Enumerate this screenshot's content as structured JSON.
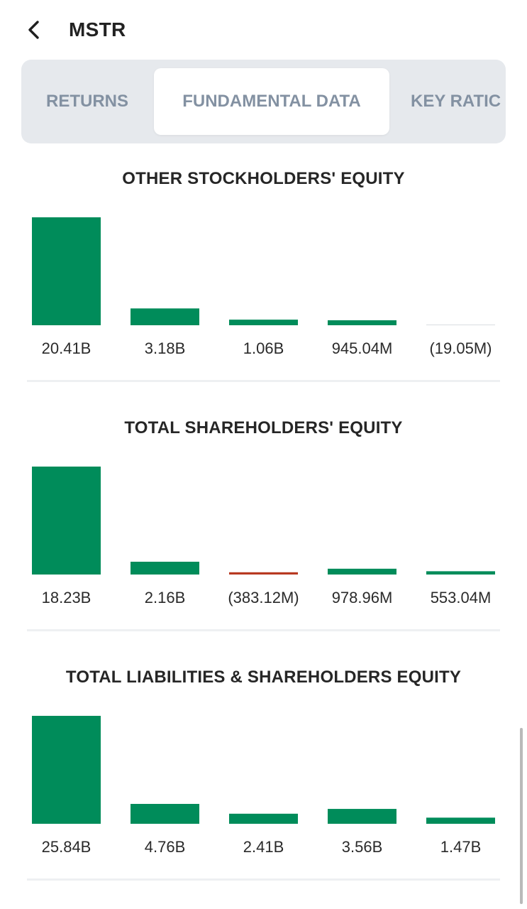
{
  "header": {
    "title": "MSTR"
  },
  "tabs": [
    {
      "label": "RETURNS",
      "active": false
    },
    {
      "label": "FUNDAMENTAL DATA",
      "active": true
    },
    {
      "label": "KEY RATIC",
      "active": false
    }
  ],
  "colors": {
    "positive": "#008c5a",
    "negative": "#b83a22",
    "zero": "#d9dde1"
  },
  "icons": {
    "back": "chevron-left-icon"
  },
  "sections": [
    {
      "title": "OTHER STOCKHOLDERS' EQUITY"
    },
    {
      "title": "TOTAL SHAREHOLDERS' EQUITY"
    },
    {
      "title": "TOTAL LIABILITIES & SHAREHOLDERS EQUITY"
    }
  ],
  "chart_data": [
    {
      "type": "bar",
      "title": "OTHER STOCKHOLDERS' EQUITY",
      "labels": [
        "20.41B",
        "3.18B",
        "1.06B",
        "945.04M",
        "(19.05M)"
      ],
      "values": [
        20.41,
        3.18,
        1.06,
        0.94504,
        -0.01905
      ],
      "unit": "B"
    },
    {
      "type": "bar",
      "title": "TOTAL SHAREHOLDERS' EQUITY",
      "labels": [
        "18.23B",
        "2.16B",
        "(383.12M)",
        "978.96M",
        "553.04M"
      ],
      "values": [
        18.23,
        2.16,
        -0.38312,
        0.97896,
        0.55304
      ],
      "unit": "B"
    },
    {
      "type": "bar",
      "title": "TOTAL LIABILITIES & SHAREHOLDERS EQUITY",
      "labels": [
        "25.84B",
        "4.76B",
        "2.41B",
        "3.56B",
        "1.47B"
      ],
      "values": [
        25.84,
        4.76,
        2.41,
        3.56,
        1.47
      ],
      "unit": "B"
    }
  ]
}
